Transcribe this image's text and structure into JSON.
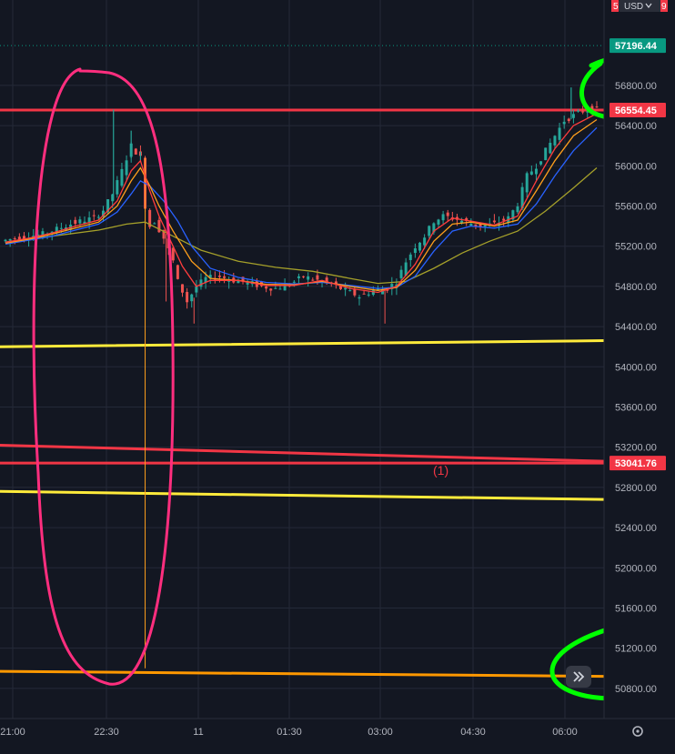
{
  "currency_button": {
    "label": "USD",
    "icon": "chevron-down-icon"
  },
  "top_price_tag": "5",
  "top_price_tag_tail": "9",
  "scroll_button": {
    "icon": "double-chevron-right-icon"
  },
  "settings": {
    "icon": "gear-icon"
  },
  "colors": {
    "background": "#131722",
    "grid": "#242938",
    "axis_text": "#b2b5be",
    "up": "#26a69a",
    "down": "#ef5350",
    "red_line": "#f23645",
    "yellow_line": "#ffeb3b",
    "orange_line": "#ff9800",
    "pink_annotation": "#ff2e7e",
    "green_annotation": "#00ff00",
    "teal_label": "#089981",
    "ma_red": "#ff3d3d",
    "ma_orange": "#ff9f1c",
    "ma_blue": "#2962ff",
    "ma_olive": "#a5a02a"
  },
  "chart_data": {
    "type": "candlestick",
    "x_ticks": [
      "21:00",
      "22:30",
      "11",
      "01:30",
      "03:00",
      "04:30",
      "06:00"
    ],
    "y_ticks": [
      56800,
      56400,
      56000,
      55600,
      55200,
      54800,
      54400,
      54000,
      53600,
      53200,
      52800,
      52400,
      52000,
      51600,
      51200,
      50800
    ],
    "y_tick_labels": [
      "56800.00",
      "56400.00",
      "56000.00",
      "55600.00",
      "55200.00",
      "54800.00",
      "54400.00",
      "54000.00",
      "53600.00",
      "53200.00",
      "52800.00",
      "52400.00",
      "52000.00",
      "51600.00",
      "51200.00",
      "50800.00"
    ],
    "ylim": [
      50500,
      57650
    ],
    "price_labels": [
      {
        "text": "57196.44",
        "value": 57196.44,
        "kind": "teal"
      },
      {
        "text": "56554.45",
        "value": 56554.45,
        "kind": "red"
      },
      {
        "text": "53041.76",
        "value": 53041.76,
        "kind": "red"
      }
    ],
    "annotation_text": "(1)",
    "dotted_level": 57196.44,
    "horizontal_lines": [
      {
        "kind": "red",
        "y_left": 56554.45,
        "y_right": 56554.45
      },
      {
        "kind": "red",
        "y_left": 53220,
        "y_right": 53060
      },
      {
        "kind": "red",
        "y_left": 53041.76,
        "y_right": 53041.76
      },
      {
        "kind": "yellow",
        "y_left": 54200,
        "y_right": 54260
      },
      {
        "kind": "yellow",
        "y_left": 52760,
        "y_right": 52680
      },
      {
        "kind": "orange",
        "y_left": 50970,
        "y_right": 50920
      }
    ],
    "price_path": [
      [
        0,
        55250
      ],
      [
        3,
        55280
      ],
      [
        6,
        55300
      ],
      [
        9,
        55320
      ],
      [
        12,
        55370
      ],
      [
        15,
        55420
      ],
      [
        18,
        55460
      ],
      [
        20,
        55480
      ],
      [
        22,
        55560
      ],
      [
        24,
        55720
      ],
      [
        26,
        55950
      ],
      [
        28,
        56200
      ],
      [
        30,
        56080
      ],
      [
        31,
        55600
      ],
      [
        32,
        55400
      ],
      [
        33,
        55450
      ],
      [
        35,
        55280
      ],
      [
        37,
        55050
      ],
      [
        38,
        54850
      ],
      [
        40,
        54650
      ],
      [
        42,
        54800
      ],
      [
        44,
        54880
      ],
      [
        47,
        54900
      ],
      [
        50,
        54860
      ],
      [
        53,
        54840
      ],
      [
        56,
        54800
      ],
      [
        59,
        54780
      ],
      [
        62,
        54820
      ],
      [
        65,
        54900
      ],
      [
        68,
        54860
      ],
      [
        71,
        54820
      ],
      [
        74,
        54760
      ],
      [
        77,
        54700
      ],
      [
        80,
        54760
      ],
      [
        83,
        54780
      ],
      [
        85,
        54850
      ],
      [
        87,
        55050
      ],
      [
        89,
        55200
      ],
      [
        91,
        55300
      ],
      [
        93,
        55450
      ],
      [
        95,
        55500
      ],
      [
        97,
        55480
      ],
      [
        100,
        55440
      ],
      [
        103,
        55400
      ],
      [
        106,
        55420
      ],
      [
        109,
        55480
      ],
      [
        111,
        55620
      ],
      [
        113,
        55900
      ],
      [
        115,
        56000
      ],
      [
        117,
        56150
      ],
      [
        119,
        56300
      ],
      [
        121,
        56450
      ],
      [
        123,
        56500
      ],
      [
        125,
        56550
      ],
      [
        127,
        56560
      ]
    ],
    "highs": [
      [
        23.2,
        56560
      ],
      [
        27,
        56350
      ],
      [
        29,
        56050
      ],
      [
        121.5,
        56780
      ]
    ],
    "lows": [
      [
        34.5,
        54650
      ],
      [
        40.5,
        54430
      ],
      [
        81.5,
        54430
      ],
      [
        30,
        51000
      ]
    ],
    "ma_fast_path": [
      [
        0,
        55240
      ],
      [
        5,
        55280
      ],
      [
        10,
        55330
      ],
      [
        15,
        55400
      ],
      [
        20,
        55460
      ],
      [
        24,
        55650
      ],
      [
        27,
        55950
      ],
      [
        29,
        56050
      ],
      [
        31,
        55750
      ],
      [
        33,
        55500
      ],
      [
        35,
        55300
      ],
      [
        38,
        55000
      ],
      [
        41,
        54800
      ],
      [
        44,
        54860
      ],
      [
        50,
        54860
      ],
      [
        56,
        54810
      ],
      [
        62,
        54810
      ],
      [
        68,
        54860
      ],
      [
        74,
        54780
      ],
      [
        80,
        54740
      ],
      [
        84,
        54800
      ],
      [
        88,
        55020
      ],
      [
        92,
        55350
      ],
      [
        96,
        55480
      ],
      [
        100,
        55450
      ],
      [
        105,
        55410
      ],
      [
        110,
        55500
      ],
      [
        114,
        55850
      ],
      [
        118,
        56170
      ],
      [
        122,
        56400
      ],
      [
        127,
        56520
      ]
    ],
    "ma_mid_path": [
      [
        0,
        55230
      ],
      [
        5,
        55270
      ],
      [
        10,
        55320
      ],
      [
        15,
        55380
      ],
      [
        20,
        55440
      ],
      [
        24,
        55600
      ],
      [
        27,
        55850
      ],
      [
        29,
        55980
      ],
      [
        31,
        55800
      ],
      [
        33,
        55600
      ],
      [
        36,
        55350
      ],
      [
        40,
        55050
      ],
      [
        44,
        54880
      ],
      [
        50,
        54860
      ],
      [
        56,
        54820
      ],
      [
        62,
        54815
      ],
      [
        68,
        54850
      ],
      [
        74,
        54800
      ],
      [
        80,
        54760
      ],
      [
        84,
        54790
      ],
      [
        88,
        54960
      ],
      [
        92,
        55250
      ],
      [
        96,
        55420
      ],
      [
        100,
        55440
      ],
      [
        105,
        55400
      ],
      [
        110,
        55460
      ],
      [
        114,
        55750
      ],
      [
        118,
        56050
      ],
      [
        122,
        56300
      ],
      [
        127,
        56460
      ]
    ],
    "ma_slow_path": [
      [
        0,
        55220
      ],
      [
        5,
        55260
      ],
      [
        10,
        55300
      ],
      [
        15,
        55360
      ],
      [
        20,
        55420
      ],
      [
        24,
        55540
      ],
      [
        27,
        55720
      ],
      [
        29,
        55850
      ],
      [
        31,
        55800
      ],
      [
        34,
        55650
      ],
      [
        37,
        55450
      ],
      [
        40,
        55200
      ],
      [
        44,
        54980
      ],
      [
        50,
        54890
      ],
      [
        56,
        54840
      ],
      [
        62,
        54825
      ],
      [
        68,
        54840
      ],
      [
        74,
        54810
      ],
      [
        80,
        54780
      ],
      [
        84,
        54790
      ],
      [
        88,
        54900
      ],
      [
        92,
        55150
      ],
      [
        96,
        55350
      ],
      [
        100,
        55400
      ],
      [
        105,
        55380
      ],
      [
        110,
        55420
      ],
      [
        114,
        55620
      ],
      [
        118,
        55900
      ],
      [
        122,
        56150
      ],
      [
        127,
        56380
      ]
    ],
    "ma_long_path": [
      [
        0,
        55240
      ],
      [
        10,
        55300
      ],
      [
        20,
        55360
      ],
      [
        26,
        55420
      ],
      [
        30,
        55440
      ],
      [
        36,
        55300
      ],
      [
        42,
        55160
      ],
      [
        50,
        55050
      ],
      [
        58,
        54990
      ],
      [
        66,
        54950
      ],
      [
        74,
        54880
      ],
      [
        80,
        54830
      ],
      [
        86,
        54850
      ],
      [
        92,
        54980
      ],
      [
        98,
        55130
      ],
      [
        104,
        55250
      ],
      [
        110,
        55350
      ],
      [
        116,
        55550
      ],
      [
        122,
        55780
      ],
      [
        127,
        55980
      ]
    ]
  }
}
